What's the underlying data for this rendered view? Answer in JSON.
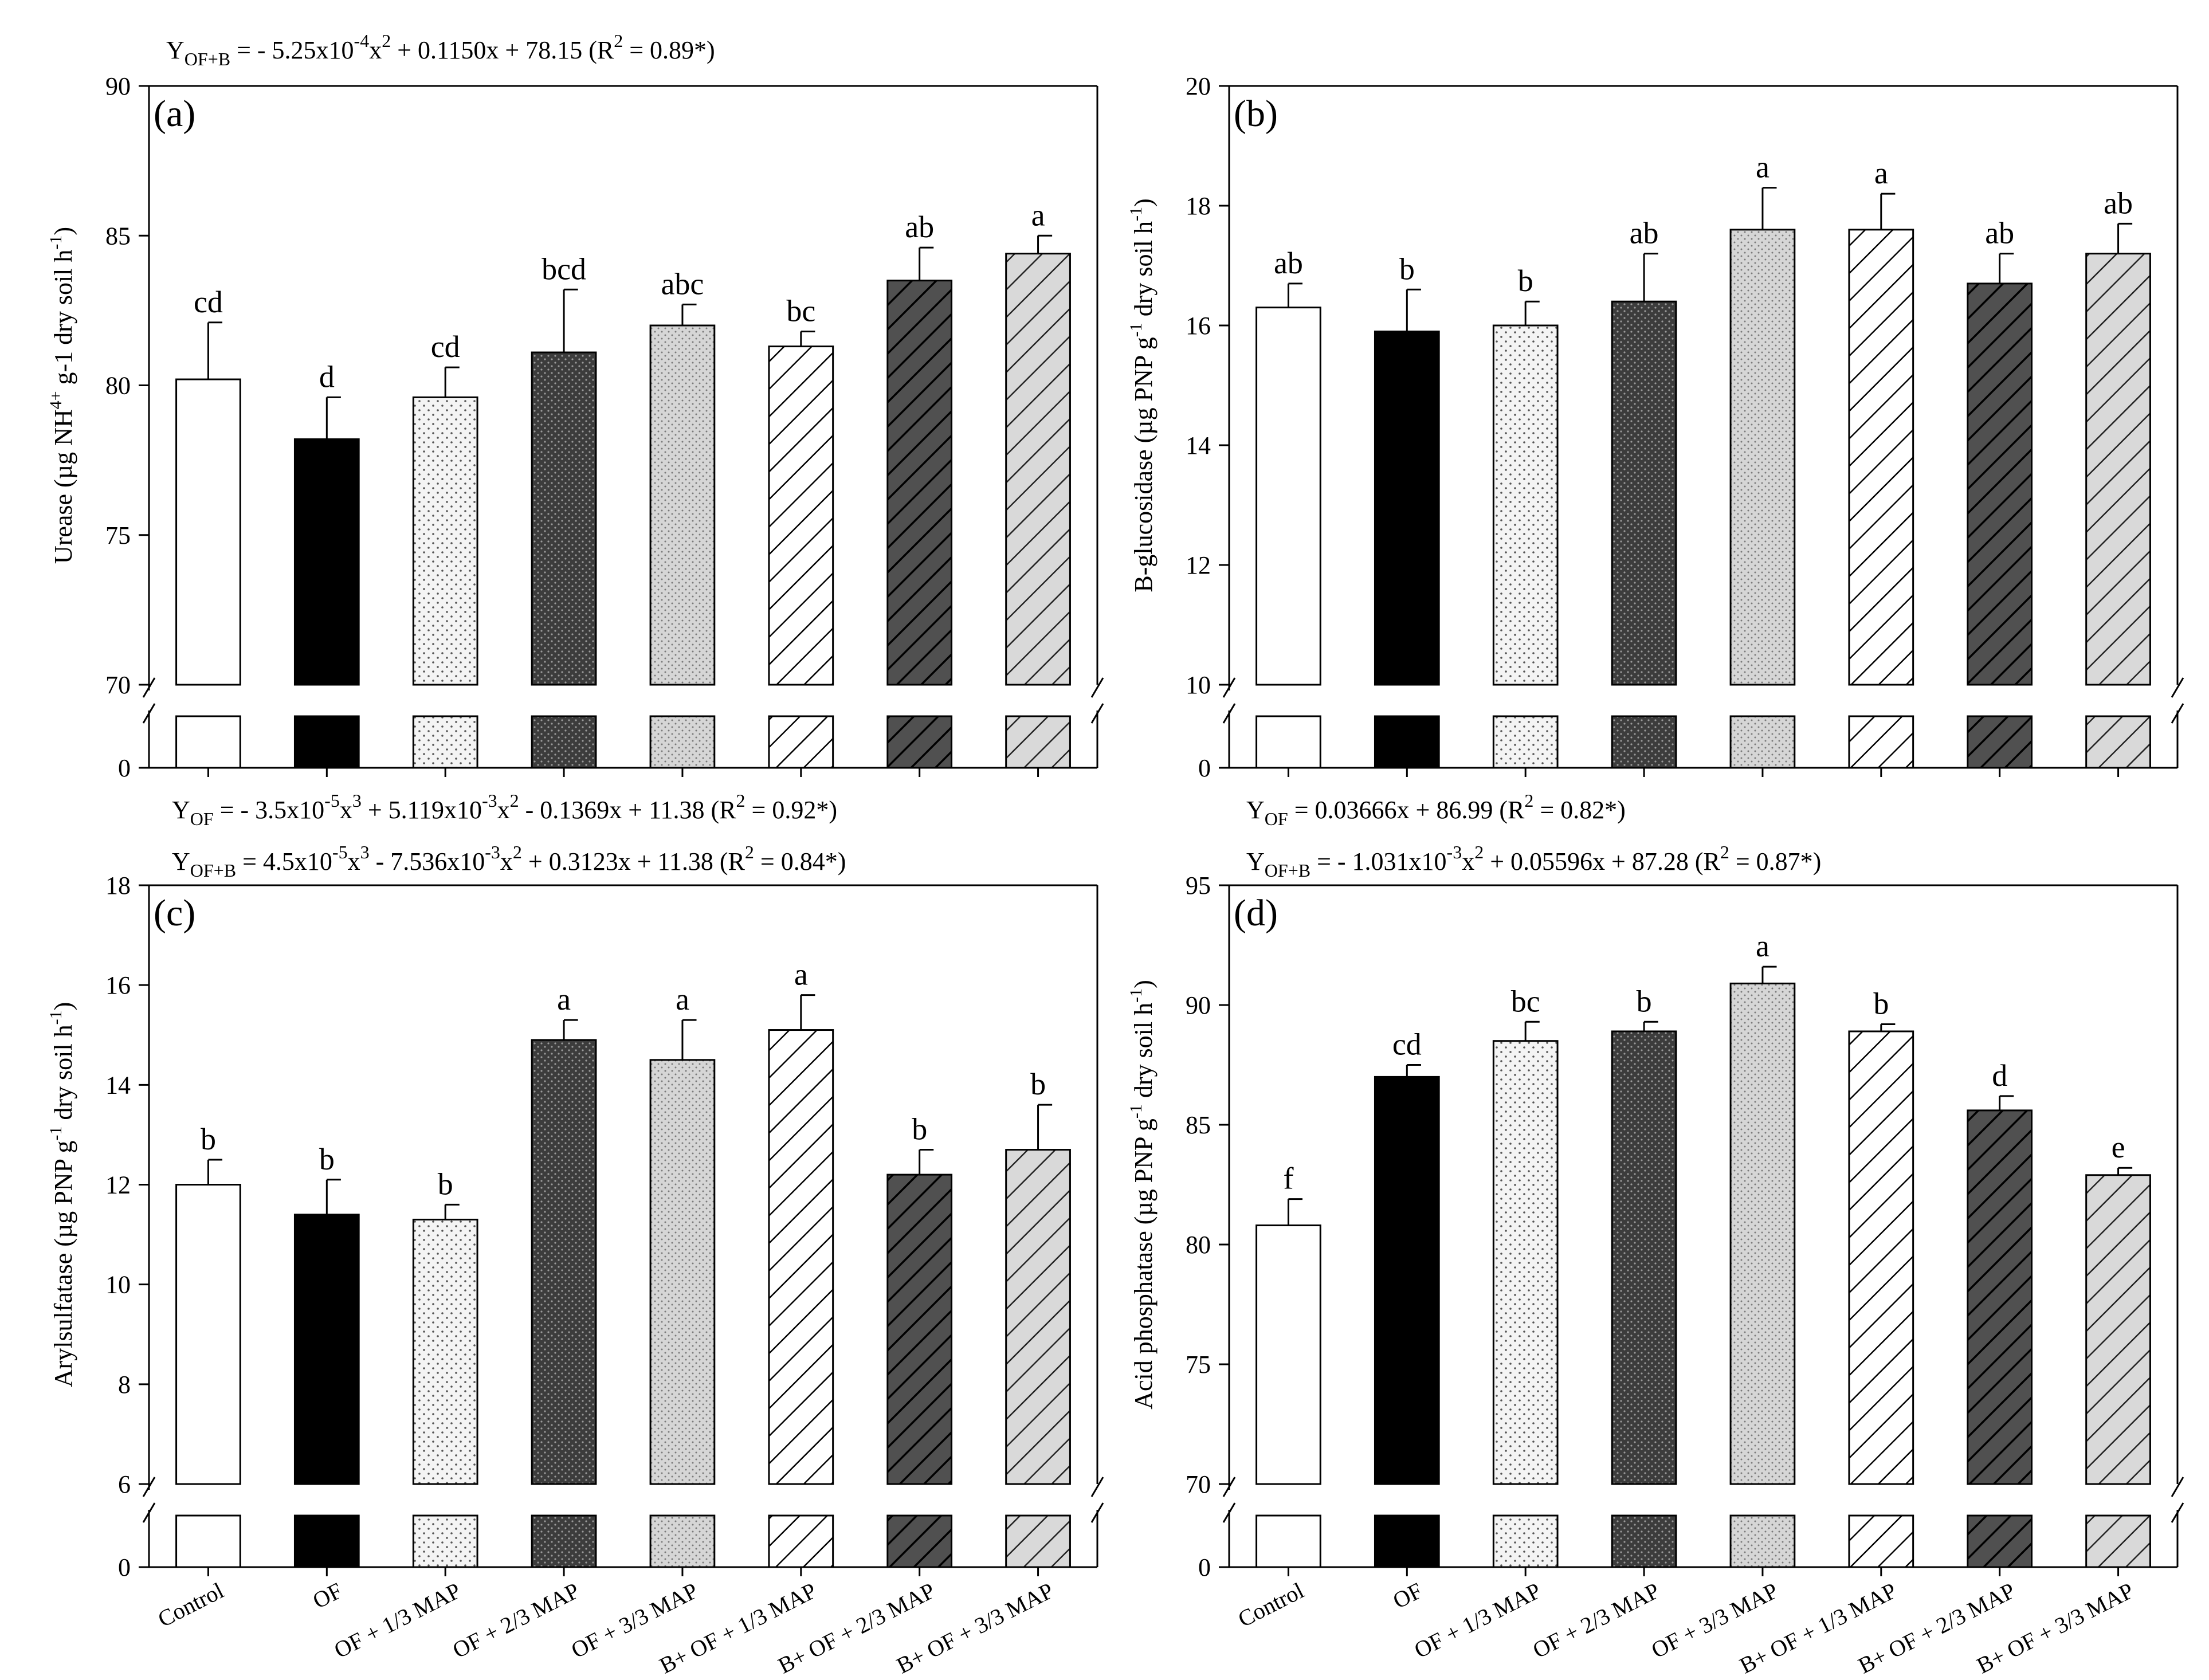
{
  "categories": [
    "Control",
    "OF",
    "OF + 1/3 MAP",
    "OF + 2/3 MAP",
    "OF + 3/3 MAP",
    "B+ OF + 1/3 MAP",
    "B+ OF + 2/3 MAP",
    "B+ OF + 3/3 MAP"
  ],
  "bar_patterns": [
    "white",
    "black",
    "dots",
    "dark-dots",
    "light-dots",
    "hatch-light",
    "hatch-dark",
    "hatch-grey"
  ],
  "colors": {
    "black": "#000000",
    "dark": "#4a4a4a",
    "light": "#dcdcdc",
    "white": "#ffffff"
  },
  "chart_data": [
    {
      "type": "bar",
      "panel": "(a)",
      "ylabel": "Urease (µg NH⁴⁺ g-1 dry soil h⁻¹)",
      "ylabel_sup": "",
      "ylim": [
        70,
        90
      ],
      "yticks": [
        70,
        75,
        80,
        85,
        90
      ],
      "break_value": 0,
      "categories": [
        "Control",
        "OF",
        "OF + 1/3 MAP",
        "OF + 2/3 MAP",
        "OF + 3/3 MAP",
        "B+ OF + 1/3 MAP",
        "B+ OF + 2/3 MAP",
        "B+ OF + 3/3 MAP"
      ],
      "values": [
        80.2,
        78.2,
        79.6,
        81.1,
        82.0,
        81.3,
        83.5,
        84.4
      ],
      "errors": [
        1.9,
        1.4,
        1.0,
        2.1,
        0.7,
        0.5,
        1.1,
        0.6
      ],
      "letters": [
        "cd",
        "d",
        "cd",
        "bcd",
        "abc",
        "bc",
        "ab",
        "a"
      ],
      "equations": [
        "Y_OF+B = - 5.25x10^-4 x^2 + 0.1150x + 78.15 (R^2 = 0.89*)"
      ]
    },
    {
      "type": "bar",
      "panel": "(b)",
      "ylabel": "B-glucosidase (µg PNP g",
      "ylabel_sup": "-1",
      "ylabel_end": " dry soil h",
      "ylabel_end_sup": "-1",
      "ylim": [
        10,
        20
      ],
      "yticks": [
        10,
        12,
        14,
        16,
        18,
        20
      ],
      "break_value": 0,
      "categories": [
        "Control",
        "OF",
        "OF + 1/3 MAP",
        "OF + 2/3 MAP",
        "OF + 3/3 MAP",
        "B+ OF + 1/3 MAP",
        "B+ OF + 2/3 MAP",
        "B+ OF + 3/3 MAP"
      ],
      "values": [
        16.3,
        15.9,
        16.0,
        16.4,
        17.6,
        17.6,
        16.7,
        17.2
      ],
      "errors": [
        0.4,
        0.7,
        0.4,
        0.8,
        0.7,
        0.6,
        0.5,
        0.5
      ],
      "letters": [
        "ab",
        "b",
        "b",
        "ab",
        "a",
        "a",
        "ab",
        "ab"
      ],
      "equations": []
    },
    {
      "type": "bar",
      "panel": "(c)",
      "ylabel": "Arylsulfatase (µg PNP g",
      "ylabel_sup": "-1",
      "ylabel_end": " dry soil h",
      "ylabel_end_sup": "-1",
      "ylim": [
        6,
        18
      ],
      "yticks": [
        6,
        8,
        10,
        12,
        14,
        16,
        18
      ],
      "break_value": 0,
      "categories": [
        "Control",
        "OF",
        "OF + 1/3 MAP",
        "OF + 2/3 MAP",
        "OF + 3/3 MAP",
        "B+ OF + 1/3 MAP",
        "B+ OF + 2/3 MAP",
        "B+ OF + 3/3 MAP"
      ],
      "values": [
        12.0,
        11.4,
        11.3,
        14.9,
        14.5,
        15.1,
        12.2,
        12.7
      ],
      "errors": [
        0.5,
        0.7,
        0.3,
        0.4,
        0.8,
        0.7,
        0.5,
        0.9
      ],
      "letters": [
        "b",
        "b",
        "b",
        "a",
        "a",
        "a",
        "b",
        "b"
      ],
      "equations": [
        "Y_OF = - 3.5x10^-5 x^3 + 5.119x10^-3 x^2 - 0.1369x + 11.38 (R^2 = 0.92*)",
        "Y_OF+B = 4.5x10^-5 x^3 - 7.536x10^-3 x^2 + 0.3123x + 11.38 (R^2 = 0.84*)"
      ]
    },
    {
      "type": "bar",
      "panel": "(d)",
      "ylabel": "Acid phosphatase (µg PNP g",
      "ylabel_sup": "-1",
      "ylabel_end": " dry soil h",
      "ylabel_end_sup": "-1",
      "ylim": [
        70,
        95
      ],
      "yticks": [
        70,
        75,
        80,
        85,
        90,
        95
      ],
      "break_value": 0,
      "categories": [
        "Control",
        "OF",
        "OF + 1/3 MAP",
        "OF + 2/3 MAP",
        "OF + 3/3 MAP",
        "B+ OF + 1/3 MAP",
        "B+ OF + 2/3 MAP",
        "B+ OF + 3/3 MAP"
      ],
      "values": [
        80.8,
        87.0,
        88.5,
        88.9,
        90.9,
        88.9,
        85.6,
        82.9
      ],
      "errors": [
        1.1,
        0.5,
        0.8,
        0.4,
        0.7,
        0.3,
        0.6,
        0.3
      ],
      "letters": [
        "f",
        "cd",
        "bc",
        "b",
        "a",
        "b",
        "d",
        "e"
      ],
      "equations": [
        "Y_OF = 0.03666x + 86.99 (R^2 = 0.82*)",
        "Y_OF+B = - 1.031x10^-3 x^2 + 0.05596x + 87.28 (R^2 = 0.87*)"
      ]
    }
  ],
  "equation_text": {
    "a1": {
      "y": "Y",
      "sub": "OF+B",
      "p1": " = - 5.25x10",
      "s1": "-4",
      "p2": "x",
      "s2": "2",
      "p3": " + 0.1150x + 78.15 (R",
      "s3": "2",
      "p4": " = 0.89*)"
    },
    "c1": {
      "y": "Y",
      "sub": "OF",
      "p1": " = - 3.5x10",
      "s1": "-5",
      "p2": "x",
      "s2": "3",
      "p3": " + 5.119x10",
      "s3": "-3",
      "p4": "x",
      "s4": "2",
      "p5": " - 0.1369x + 11.38 (R",
      "s5": "2",
      "p6": " = 0.92*)"
    },
    "c2": {
      "y": "Y",
      "sub": "OF+B",
      "p1": " = 4.5x10",
      "s1": "-5",
      "p2": "x",
      "s2": "3",
      "p3": " - 7.536x10",
      "s3": "-3",
      "p4": "x",
      "s4": "2",
      "p5": " + 0.3123x + 11.38 (R",
      "s5": "2",
      "p6": " = 0.84*)"
    },
    "d1": {
      "y": "Y",
      "sub": "OF",
      "p1": " = 0.03666x + 86.99 (R",
      "s1": "2",
      "p2": " = 0.82*)"
    },
    "d2": {
      "y": "Y",
      "sub": "OF+B",
      "p1": " = - 1.031x10",
      "s1": "-3",
      "p2": "x",
      "s2": "2",
      "p3": " + 0.05596x + 87.28 (R",
      "s3": "2",
      "p4": " = 0.87*)"
    }
  },
  "urease_label": {
    "main": "Urease (µg NH",
    "sup1": "4+",
    "mid": " g-1 dry soil h",
    "sup2": "-1",
    "end": ")"
  },
  "ylabel_close": ")"
}
